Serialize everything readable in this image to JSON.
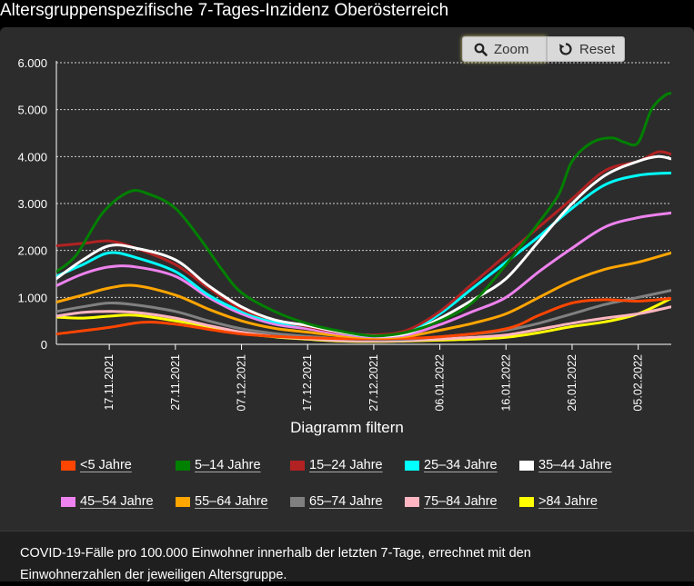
{
  "title": "Altersgruppenspezifische 7-Tages-Inzidenz Oberösterreich",
  "buttons": {
    "zoom": "Zoom",
    "reset": "Reset"
  },
  "filter_title": "Diagramm filtern",
  "footnote_lines": [
    "COVID-19-Fälle pro 100.000 Einwohner innerhalb der letzten 7-Tage, errechnet mit den",
    "Einwohnerzahlen der jeweiligen Altersgruppe."
  ],
  "chart_data": {
    "type": "line",
    "x_start": "09.11.2021",
    "x_end": "10.02.2022",
    "xtick_labels": [
      "17.11.2021",
      "27.11.2021",
      "07.12.2021",
      "17.12.2021",
      "27.12.2021",
      "06.01.2022",
      "16.01.2022",
      "26.01.2022",
      "05.02.2022"
    ],
    "ylim": [
      0,
      6000
    ],
    "yticks": [
      0,
      1000,
      2000,
      3000,
      4000,
      5000,
      6000
    ],
    "ytick_labels": [
      "0",
      "1.000",
      "2.000",
      "3.000",
      "4.000",
      "5.000",
      "6.000"
    ],
    "grid": true,
    "legend_position": "bottom",
    "series": [
      {
        "name": "<5 Jahre",
        "color": "#ff4500",
        "x": [
          "09.11.2021",
          "17.11.2021",
          "22.11.2021",
          "27.11.2021",
          "07.12.2021",
          "17.12.2021",
          "27.12.2021",
          "06.01.2022",
          "16.01.2022",
          "21.01.2022",
          "26.01.2022",
          "31.01.2022",
          "05.02.2022",
          "10.02.2022"
        ],
        "y": [
          220,
          360,
          470,
          430,
          220,
          140,
          120,
          160,
          330,
          620,
          880,
          950,
          920,
          980
        ]
      },
      {
        "name": "5–14 Jahre",
        "color": "#008000",
        "x": [
          "09.11.2021",
          "12.11.2021",
          "16.11.2021",
          "20.11.2021",
          "23.11.2021",
          "27.11.2021",
          "01.12.2021",
          "04.12.2021",
          "07.12.2021",
          "12.12.2021",
          "17.12.2021",
          "22.12.2021",
          "27.12.2021",
          "01.01.2022",
          "06.01.2022",
          "11.01.2022",
          "16.01.2022",
          "21.01.2022",
          "24.01.2022",
          "26.01.2022",
          "29.01.2022",
          "01.02.2022",
          "03.02.2022",
          "05.02.2022",
          "07.02.2022",
          "09.02.2022",
          "10.02.2022"
        ],
        "y": [
          1550,
          1900,
          2800,
          3250,
          3200,
          2900,
          2200,
          1600,
          1100,
          700,
          440,
          280,
          180,
          260,
          500,
          900,
          1700,
          2600,
          3200,
          3900,
          4300,
          4400,
          4300,
          4300,
          5000,
          5300,
          5350
        ]
      },
      {
        "name": "15–24 Jahre",
        "color": "#b22222",
        "x": [
          "09.11.2021",
          "13.11.2021",
          "17.11.2021",
          "21.11.2021",
          "27.11.2021",
          "02.12.2021",
          "07.12.2021",
          "12.12.2021",
          "17.12.2021",
          "22.12.2021",
          "27.12.2021",
          "01.01.2022",
          "06.01.2022",
          "11.01.2022",
          "16.01.2022",
          "21.01.2022",
          "26.01.2022",
          "31.01.2022",
          "05.02.2022",
          "08.02.2022",
          "10.02.2022"
        ],
        "y": [
          2100,
          2150,
          2200,
          2050,
          1700,
          1200,
          750,
          520,
          380,
          250,
          200,
          300,
          700,
          1300,
          1900,
          2500,
          3100,
          3700,
          3900,
          4100,
          4050
        ]
      },
      {
        "name": "25–34 Jahre",
        "color": "#00ffff",
        "x": [
          "09.11.2021",
          "13.11.2021",
          "17.11.2021",
          "21.11.2021",
          "27.11.2021",
          "02.12.2021",
          "07.12.2021",
          "12.12.2021",
          "17.12.2021",
          "22.12.2021",
          "27.12.2021",
          "01.01.2022",
          "06.01.2022",
          "11.01.2022",
          "16.01.2022",
          "21.01.2022",
          "26.01.2022",
          "31.01.2022",
          "05.02.2022",
          "10.02.2022"
        ],
        "y": [
          1450,
          1700,
          1950,
          1850,
          1550,
          1050,
          700,
          480,
          380,
          250,
          180,
          260,
          650,
          1200,
          1750,
          2300,
          2900,
          3400,
          3600,
          3650
        ]
      },
      {
        "name": "35–44 Jahre",
        "color": "#ffffff",
        "x": [
          "09.11.2021",
          "13.11.2021",
          "17.11.2021",
          "21.11.2021",
          "27.11.2021",
          "02.12.2021",
          "07.12.2021",
          "12.12.2021",
          "17.12.2021",
          "22.12.2021",
          "27.12.2021",
          "01.01.2022",
          "06.01.2022",
          "11.01.2022",
          "16.01.2022",
          "21.01.2022",
          "26.01.2022",
          "31.01.2022",
          "05.02.2022",
          "08.02.2022",
          "10.02.2022"
        ],
        "y": [
          1400,
          1800,
          2100,
          2050,
          1800,
          1250,
          800,
          520,
          400,
          260,
          180,
          230,
          550,
          950,
          1400,
          2200,
          3000,
          3600,
          3900,
          4000,
          3950
        ]
      },
      {
        "name": "45–54 Jahre",
        "color": "#ee82ee",
        "x": [
          "09.11.2021",
          "13.11.2021",
          "17.11.2021",
          "21.11.2021",
          "27.11.2021",
          "02.12.2021",
          "07.12.2021",
          "12.12.2021",
          "17.12.2021",
          "22.12.2021",
          "27.12.2021",
          "01.01.2022",
          "06.01.2022",
          "11.01.2022",
          "16.01.2022",
          "21.01.2022",
          "26.01.2022",
          "31.01.2022",
          "05.02.2022",
          "10.02.2022"
        ],
        "y": [
          1250,
          1500,
          1650,
          1650,
          1450,
          1000,
          650,
          430,
          330,
          220,
          160,
          200,
          420,
          700,
          1000,
          1550,
          2050,
          2500,
          2700,
          2800
        ]
      },
      {
        "name": "55–64 Jahre",
        "color": "#ffa500",
        "x": [
          "09.11.2021",
          "13.11.2021",
          "17.11.2021",
          "21.11.2021",
          "27.11.2021",
          "02.12.2021",
          "07.12.2021",
          "12.12.2021",
          "17.12.2021",
          "22.12.2021",
          "27.12.2021",
          "01.01.2022",
          "06.01.2022",
          "11.01.2022",
          "16.01.2022",
          "21.01.2022",
          "26.01.2022",
          "31.01.2022",
          "05.02.2022",
          "10.02.2022"
        ],
        "y": [
          900,
          1050,
          1200,
          1250,
          1050,
          750,
          500,
          340,
          260,
          180,
          140,
          170,
          300,
          450,
          650,
          1000,
          1350,
          1600,
          1750,
          1950
        ]
      },
      {
        "name": "65–74 Jahre",
        "color": "#808080",
        "x": [
          "09.11.2021",
          "13.11.2021",
          "17.11.2021",
          "21.11.2021",
          "27.11.2021",
          "02.12.2021",
          "07.12.2021",
          "12.12.2021",
          "17.12.2021",
          "22.12.2021",
          "27.12.2021",
          "01.01.2022",
          "06.01.2022",
          "11.01.2022",
          "16.01.2022",
          "21.01.2022",
          "26.01.2022",
          "31.01.2022",
          "05.02.2022",
          "10.02.2022"
        ],
        "y": [
          700,
          800,
          880,
          840,
          700,
          500,
          330,
          230,
          170,
          120,
          100,
          110,
          160,
          220,
          300,
          450,
          650,
          850,
          1000,
          1150
        ]
      },
      {
        "name": "75–84 Jahre",
        "color": "#ffb6c1",
        "x": [
          "09.11.2021",
          "13.11.2021",
          "17.11.2021",
          "21.11.2021",
          "27.11.2021",
          "02.12.2021",
          "07.12.2021",
          "12.12.2021",
          "17.12.2021",
          "22.12.2021",
          "27.12.2021",
          "01.01.2022",
          "06.01.2022",
          "11.01.2022",
          "16.01.2022",
          "21.01.2022",
          "26.01.2022",
          "31.01.2022",
          "05.02.2022",
          "10.02.2022"
        ],
        "y": [
          600,
          680,
          700,
          680,
          560,
          400,
          260,
          170,
          120,
          80,
          70,
          80,
          110,
          150,
          200,
          320,
          450,
          560,
          650,
          800
        ]
      },
      {
        "name": ">84 Jahre",
        "color": "#ffff00",
        "x": [
          "09.11.2021",
          "13.11.2021",
          "17.11.2021",
          "21.11.2021",
          "27.11.2021",
          "02.12.2021",
          "07.12.2021",
          "12.12.2021",
          "17.12.2021",
          "22.12.2021",
          "27.12.2021",
          "01.01.2022",
          "06.01.2022",
          "11.01.2022",
          "16.01.2022",
          "21.01.2022",
          "26.01.2022",
          "31.01.2022",
          "05.02.2022",
          "10.02.2022"
        ],
        "y": [
          580,
          560,
          600,
          620,
          500,
          380,
          240,
          160,
          110,
          70,
          60,
          70,
          90,
          110,
          150,
          250,
          380,
          480,
          650,
          980
        ]
      }
    ]
  }
}
